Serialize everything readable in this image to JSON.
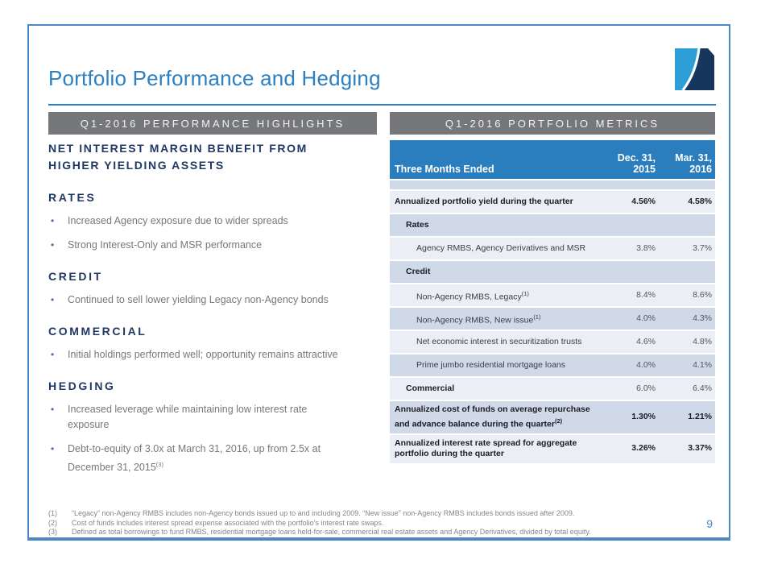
{
  "slide": {
    "title": "Portfolio Performance and Hedging",
    "page_number": "9"
  },
  "colors": {
    "accent_blue": "#2C80C2",
    "slide_border_blue": "#4C87C7",
    "panel_header_gray": "#76777B",
    "table_header_blue": "#2A7EBD",
    "row_light": "#EBEFF5",
    "row_medium": "#CFD9E7",
    "navy_heading": "#1F3864",
    "logo_light_blue": "#2E9FD6",
    "logo_navy": "#17365D"
  },
  "left_panel": {
    "header": "Q1-2016 PERFORMANCE HIGHLIGHTS",
    "headline": "NET INTEREST MARGIN BENEFIT FROM\nHIGHER YIELDING ASSETS",
    "sections": [
      {
        "heading": "RATES",
        "bullets": [
          {
            "text": "Increased Agency exposure due to wider spreads"
          },
          {
            "text": "Strong Interest-Only and MSR performance"
          }
        ]
      },
      {
        "heading": "CREDIT",
        "bullets": [
          {
            "text": "Continued to sell lower yielding Legacy non-Agency bonds"
          }
        ]
      },
      {
        "heading": "COMMERCIAL",
        "bullets": [
          {
            "text": "Initial holdings performed well; opportunity remains attractive"
          }
        ]
      },
      {
        "heading": "HEDGING",
        "bullets": [
          {
            "text": "Increased leverage while maintaining low interest rate\nexposure"
          },
          {
            "text": "Debt-to-equity of 3.0x at March 31, 2016, up from 2.5x at\nDecember 31, 2015",
            "sup": "(3)"
          }
        ]
      }
    ]
  },
  "right_panel": {
    "header": "Q1-2016 PORTFOLIO METRICS",
    "table": {
      "header": {
        "label": "Three Months Ended",
        "col1": "Dec. 31, 2015",
        "col2": "Mar. 31, 2016"
      },
      "rows": [
        {
          "label": "Annualized portfolio yield during the quarter",
          "v1": "4.56%",
          "v2": "4.58%",
          "style": "total",
          "shade": "light"
        },
        {
          "label": "Rates",
          "v1": "",
          "v2": "",
          "style": "subhead",
          "shade": "medium"
        },
        {
          "label": "Agency RMBS, Agency Derivatives and MSR",
          "v1": "3.8%",
          "v2": "3.7%",
          "style": "item",
          "shade": "light"
        },
        {
          "label": "Credit",
          "v1": "",
          "v2": "",
          "style": "subhead",
          "shade": "medium"
        },
        {
          "label": "Non-Agency RMBS, Legacy",
          "sup": "(1)",
          "v1": "8.4%",
          "v2": "8.6%",
          "style": "item",
          "shade": "light"
        },
        {
          "label": "Non-Agency RMBS, New issue",
          "sup": "(1)",
          "v1": "4.0%",
          "v2": "4.3%",
          "style": "item",
          "shade": "medium"
        },
        {
          "label": "Net economic interest in securitization trusts",
          "v1": "4.6%",
          "v2": "4.8%",
          "style": "item",
          "shade": "light"
        },
        {
          "label": "Prime jumbo residential mortgage loans",
          "v1": "4.0%",
          "v2": "4.1%",
          "style": "item",
          "shade": "medium"
        },
        {
          "label": "Commercial",
          "v1": "6.0%",
          "v2": "6.4%",
          "style": "subhead2",
          "shade": "light"
        },
        {
          "label": "Annualized cost of funds on average repurchase and advance balance during the quarter",
          "sup": "(2)",
          "v1": "1.30%",
          "v2": "1.21%",
          "style": "total",
          "shade": "medium"
        },
        {
          "label": "Annualized interest rate spread for aggregate portfolio during the quarter",
          "v1": "3.26%",
          "v2": "3.37%",
          "style": "total",
          "shade": "light"
        }
      ]
    }
  },
  "footnotes": [
    {
      "num": "(1)",
      "text": "“Legacy” non-Agency RMBS includes non-Agency bonds issued up to and including 2009.  “New issue” non-Agency RMBS includes bonds issued after 2009."
    },
    {
      "num": "(2)",
      "text": "Cost of funds includes interest spread expense associated with the portfolio's interest rate swaps."
    },
    {
      "num": "(3)",
      "text": "Defined as total borrowings to fund RMBS, residential mortgage loans held-for-sale, commercial real estate assets and Agency Derivatives, divided by total equity."
    }
  ]
}
